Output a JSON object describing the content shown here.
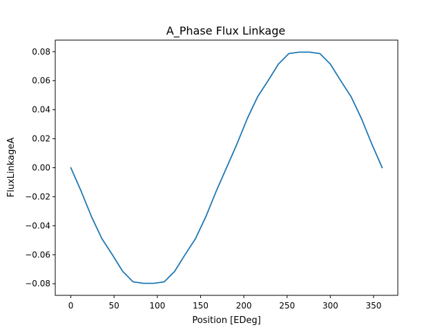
{
  "chart_data": {
    "type": "line",
    "title": "A_Phase Flux Linkage",
    "xlabel": "Position [EDeg]",
    "ylabel": "FluxLinkageA",
    "xlim": [
      -18,
      378
    ],
    "ylim": [
      -0.088,
      0.088
    ],
    "x_ticks": [
      0,
      50,
      100,
      150,
      200,
      250,
      300,
      350
    ],
    "x_tick_labels": [
      "0",
      "50",
      "100",
      "150",
      "200",
      "250",
      "300",
      "350"
    ],
    "y_ticks": [
      -0.08,
      -0.06,
      -0.04,
      -0.02,
      0.0,
      0.02,
      0.04,
      0.06,
      0.08
    ],
    "y_tick_labels": [
      "−0.08",
      "−0.06",
      "−0.04",
      "−0.02",
      "0.00",
      "0.02",
      "0.04",
      "0.06",
      "0.08"
    ],
    "grid": false,
    "series": [
      {
        "color": "#1f77b4",
        "x": [
          0,
          12,
          24,
          36,
          48,
          60,
          72,
          84,
          96,
          108,
          120,
          132,
          144,
          156,
          168,
          180,
          192,
          204,
          216,
          228,
          240,
          252,
          264,
          276,
          288,
          300,
          312,
          324,
          336,
          348,
          360
        ],
        "y": [
          0.0,
          -0.0163,
          -0.0339,
          -0.049,
          -0.06,
          -0.0715,
          -0.0787,
          -0.0797,
          -0.0797,
          -0.0787,
          -0.0715,
          -0.06,
          -0.049,
          -0.0339,
          -0.0163,
          0.0,
          0.0163,
          0.0339,
          0.049,
          0.06,
          0.0715,
          0.0787,
          0.0797,
          0.0797,
          0.0787,
          0.0715,
          0.06,
          0.049,
          0.0339,
          0.0163,
          0.0
        ]
      }
    ]
  }
}
